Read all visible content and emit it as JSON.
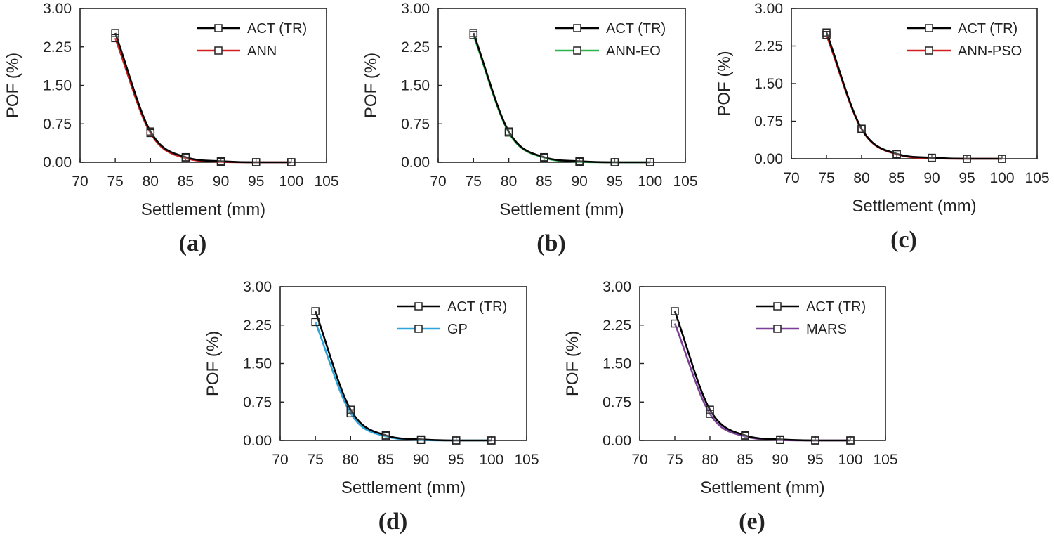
{
  "chart_data": [
    {
      "type": "line",
      "panel": "(a)",
      "xlabel": "Settlement (mm)",
      "ylabel": "POF (%)",
      "xlim": [
        70,
        105
      ],
      "ylim": [
        0,
        3
      ],
      "xticks": [
        "70",
        "75",
        "80",
        "85",
        "90",
        "95",
        "100",
        "105"
      ],
      "yticks": [
        "0.00",
        "0.75",
        "1.50",
        "2.25",
        "3.00"
      ],
      "legend_position": "top-right",
      "x": [
        75,
        80,
        85,
        90,
        95,
        100
      ],
      "series": [
        {
          "name": "ACT (TR)",
          "color": "#000000",
          "values": [
            2.52,
            0.6,
            0.1,
            0.02,
            0.0,
            0.0
          ]
        },
        {
          "name": "ANN",
          "color": "#d42020",
          "values": [
            2.42,
            0.57,
            0.08,
            0.01,
            0.0,
            0.0
          ]
        }
      ]
    },
    {
      "type": "line",
      "panel": "(b)",
      "xlabel": "Settlement (mm)",
      "ylabel": "POF (%)",
      "xlim": [
        70,
        105
      ],
      "ylim": [
        0,
        3
      ],
      "xticks": [
        "70",
        "75",
        "80",
        "85",
        "90",
        "95",
        "100",
        "105"
      ],
      "yticks": [
        "0.00",
        "0.75",
        "1.50",
        "2.25",
        "3.00"
      ],
      "legend_position": "top-right",
      "x": [
        75,
        80,
        85,
        90,
        95,
        100
      ],
      "series": [
        {
          "name": "ACT (TR)",
          "color": "#000000",
          "values": [
            2.52,
            0.6,
            0.1,
            0.02,
            0.0,
            0.0
          ]
        },
        {
          "name": "ANN-EO",
          "color": "#2db34a",
          "values": [
            2.48,
            0.58,
            0.09,
            0.01,
            0.0,
            0.0
          ]
        }
      ]
    },
    {
      "type": "line",
      "panel": "(c)",
      "xlabel": "Settlement (mm)",
      "ylabel": "POF (%)",
      "xlim": [
        70,
        105
      ],
      "ylim": [
        0,
        3
      ],
      "xticks": [
        "70",
        "75",
        "80",
        "85",
        "90",
        "95",
        "100",
        "105"
      ],
      "yticks": [
        "0.00",
        "0.75",
        "1.50",
        "2.25",
        "3.00"
      ],
      "legend_position": "top-right",
      "x": [
        75,
        80,
        85,
        90,
        95,
        100
      ],
      "series": [
        {
          "name": "ACT (TR)",
          "color": "#000000",
          "values": [
            2.52,
            0.6,
            0.1,
            0.02,
            0.0,
            0.0
          ]
        },
        {
          "name": "ANN-PSO",
          "color": "#d42020",
          "values": [
            2.47,
            0.59,
            0.09,
            0.01,
            0.0,
            0.0
          ]
        }
      ]
    },
    {
      "type": "line",
      "panel": "(d)",
      "xlabel": "Settlement (mm)",
      "ylabel": "POF (%)",
      "xlim": [
        70,
        105
      ],
      "ylim": [
        0,
        3
      ],
      "xticks": [
        "70",
        "75",
        "80",
        "85",
        "90",
        "95",
        "100",
        "105"
      ],
      "yticks": [
        "0.00",
        "0.75",
        "1.50",
        "2.25",
        "3.00"
      ],
      "legend_position": "top-right",
      "x": [
        75,
        80,
        85,
        90,
        95,
        100
      ],
      "series": [
        {
          "name": "ACT (TR)",
          "color": "#000000",
          "values": [
            2.52,
            0.6,
            0.1,
            0.02,
            0.0,
            0.0
          ]
        },
        {
          "name": "GP",
          "color": "#2aa6dc",
          "values": [
            2.31,
            0.53,
            0.08,
            0.01,
            0.0,
            0.0
          ]
        }
      ]
    },
    {
      "type": "line",
      "panel": "(e)",
      "xlabel": "Settlement (mm)",
      "ylabel": "POF (%)",
      "xlim": [
        70,
        105
      ],
      "ylim": [
        0,
        3
      ],
      "xticks": [
        "70",
        "75",
        "80",
        "85",
        "90",
        "95",
        "100",
        "105"
      ],
      "yticks": [
        "0.00",
        "0.75",
        "1.50",
        "2.25",
        "3.00"
      ],
      "legend_position": "top-right",
      "x": [
        75,
        80,
        85,
        90,
        95,
        100
      ],
      "series": [
        {
          "name": "ACT (TR)",
          "color": "#000000",
          "values": [
            2.52,
            0.6,
            0.1,
            0.02,
            0.0,
            0.0
          ]
        },
        {
          "name": "MARS",
          "color": "#7b3f98",
          "values": [
            2.28,
            0.52,
            0.08,
            0.01,
            0.0,
            0.0
          ]
        }
      ]
    }
  ]
}
